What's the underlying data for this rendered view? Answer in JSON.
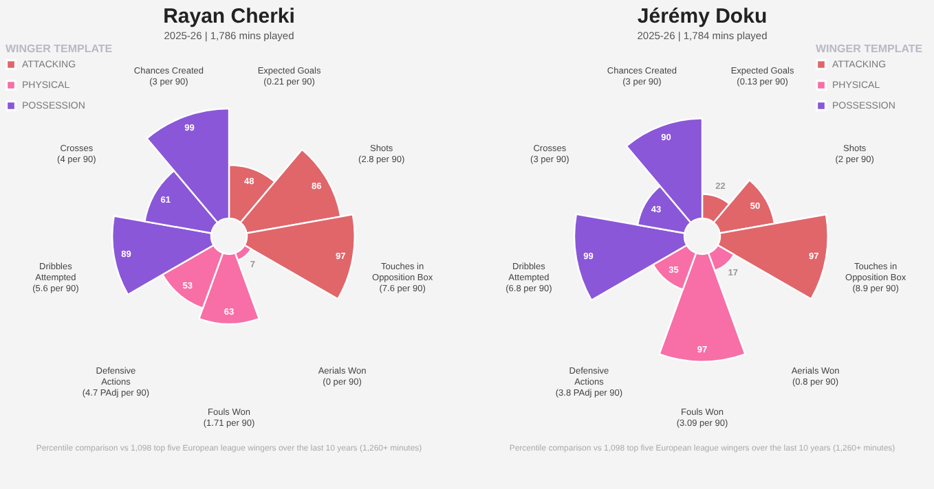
{
  "chart_data": [
    {
      "type": "other",
      "title": "Rayan Cherki",
      "subtitle": "2025-26 | 1,786 mins played",
      "legend_title": "WINGER TEMPLATE",
      "legend": "top left",
      "data_labels": true,
      "categories": [
        "Expected Goals (0.21 per 90)",
        "Shots (2.8 per 90)",
        "Touches in Opposition Box (7.6 per 90)",
        "Aerials Won (0 per 90)",
        "Fouls Won (1.71 per 90)",
        "Defensive Actions (4.7 PAdj per 90)",
        "Dribbles Attempted (5.6 per 90)",
        "Crosses (4 per 90)",
        "Chances Created (3 per 90)"
      ],
      "series": [
        {
          "name": "ATTACKING",
          "color": "#e0666a",
          "values": [
            48,
            86,
            97,
            null,
            null,
            null,
            null,
            null,
            null
          ]
        },
        {
          "name": "PHYSICAL",
          "color": "#f76fa6",
          "values": [
            null,
            null,
            null,
            7,
            63,
            53,
            null,
            null,
            null
          ]
        },
        {
          "name": "POSSESSION",
          "color": "#8a57d8",
          "values": [
            null,
            null,
            null,
            null,
            null,
            null,
            89,
            61,
            99
          ]
        }
      ],
      "annotations": [
        "Percentile comparison vs 1,098 top five European league wingers over the last 10 years (1,260+ minutes)"
      ]
    },
    {
      "type": "other",
      "title": "Jérémy Doku",
      "subtitle": "2025-26 | 1,784 mins played",
      "legend_title": "WINGER TEMPLATE",
      "legend": "top right",
      "data_labels": true,
      "categories": [
        "Expected Goals (0.13 per 90)",
        "Shots (2 per 90)",
        "Touches in Opposition Box (8.9 per 90)",
        "Aerials Won (0.8 per 90)",
        "Fouls Won (3.09 per 90)",
        "Defensive Actions (3.8 PAdj per 90)",
        "Dribbles Attempted (6.8 per 90)",
        "Crosses (3 per 90)",
        "Chances Created (3 per 90)"
      ],
      "series": [
        {
          "name": "ATTACKING",
          "color": "#e0666a",
          "values": [
            22,
            50,
            97,
            null,
            null,
            null,
            null,
            null,
            null
          ]
        },
        {
          "name": "PHYSICAL",
          "color": "#f76fa6",
          "values": [
            null,
            null,
            null,
            17,
            97,
            35,
            null,
            null,
            null
          ]
        },
        {
          "name": "POSSESSION",
          "color": "#8a57d8",
          "values": [
            null,
            null,
            null,
            null,
            null,
            null,
            99,
            43,
            90
          ]
        }
      ],
      "annotations": [
        "Percentile comparison vs 1,098 top five European league wingers over the last 10 years (1,260+ minutes)"
      ]
    }
  ]
}
